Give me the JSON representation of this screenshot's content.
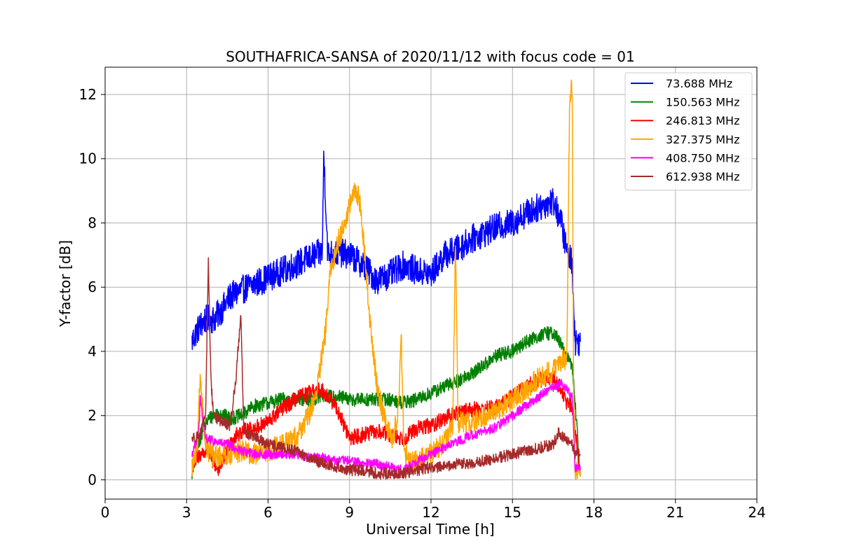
{
  "chart_data": {
    "type": "line",
    "title": "SOUTHAFRICA-SANSA of 2020/11/12 with focus code = 01",
    "xlabel": "Universal Time [h]",
    "ylabel": "Y-factor [dB]",
    "xlim": [
      0,
      24
    ],
    "ylim": [
      -0.6,
      12.85
    ],
    "xticks": [
      0,
      3,
      6,
      9,
      12,
      15,
      18,
      21,
      24
    ],
    "yticks": [
      0,
      2,
      4,
      6,
      8,
      10,
      12
    ],
    "grid": true,
    "legend_position": "top-right",
    "series": [
      {
        "name": " 73.688 MHz",
        "color": "#0000ff",
        "x": [
          3.2,
          3.35,
          3.5,
          3.7,
          4.0,
          4.3,
          4.6,
          5.0,
          5.5,
          6.0,
          6.5,
          7.0,
          7.5,
          8.0,
          8.05,
          8.2,
          8.5,
          9.0,
          9.5,
          10.0,
          10.5,
          11.0,
          11.5,
          12.0,
          12.5,
          13.0,
          13.5,
          14.0,
          14.5,
          15.0,
          15.5,
          16.0,
          16.5,
          16.8,
          17.0,
          17.2,
          17.3,
          17.5
        ],
        "values": [
          4.3,
          4.6,
          4.8,
          5.0,
          5.0,
          5.3,
          5.7,
          5.9,
          6.1,
          6.3,
          6.5,
          6.7,
          6.9,
          7.1,
          10.2,
          7.0,
          7.1,
          7.0,
          6.7,
          6.2,
          6.4,
          6.7,
          6.5,
          6.4,
          7.0,
          7.2,
          7.5,
          7.7,
          7.9,
          8.0,
          8.3,
          8.5,
          8.7,
          8.0,
          7.1,
          6.8,
          4.3,
          4.3
        ]
      },
      {
        "name": "150.563 MHz",
        "color": "#008000",
        "x": [
          3.2,
          3.5,
          3.8,
          4.2,
          4.6,
          5.0,
          5.5,
          6.0,
          6.5,
          7.0,
          7.5,
          8.0,
          8.5,
          9.0,
          9.5,
          10.0,
          10.5,
          11.0,
          11.5,
          12.0,
          12.5,
          13.0,
          13.5,
          14.0,
          14.5,
          15.0,
          15.5,
          16.0,
          16.5,
          16.8,
          17.0,
          17.2,
          17.5
        ],
        "values": [
          0.2,
          1.3,
          1.9,
          2.1,
          1.9,
          2.0,
          2.3,
          2.4,
          2.5,
          2.5,
          2.5,
          2.6,
          2.6,
          2.5,
          2.5,
          2.5,
          2.5,
          2.4,
          2.5,
          2.7,
          2.9,
          3.1,
          3.3,
          3.6,
          3.9,
          4.0,
          4.3,
          4.5,
          4.6,
          4.2,
          3.8,
          3.6,
          0.1
        ]
      },
      {
        "name": "246.813 MHz",
        "color": "#ff0000",
        "x": [
          3.2,
          3.5,
          3.8,
          4.0,
          4.2,
          4.6,
          5.0,
          5.5,
          6.0,
          6.5,
          7.0,
          7.5,
          8.0,
          8.5,
          9.0,
          9.5,
          10.0,
          10.5,
          11.0,
          11.5,
          12.0,
          12.5,
          13.0,
          13.5,
          14.0,
          14.5,
          15.0,
          15.5,
          16.0,
          16.5,
          16.8,
          17.0,
          17.2,
          17.5
        ],
        "values": [
          0.4,
          0.8,
          0.9,
          0.5,
          0.3,
          1.2,
          1.5,
          1.6,
          1.8,
          2.2,
          2.5,
          2.7,
          2.8,
          2.3,
          1.3,
          1.4,
          1.5,
          1.4,
          1.3,
          1.6,
          1.7,
          1.9,
          2.1,
          2.2,
          2.2,
          2.3,
          2.6,
          2.9,
          3.1,
          3.2,
          2.8,
          2.4,
          2.3,
          0.2
        ]
      },
      {
        "name": "327.375 MHz",
        "color": "#ffa500",
        "x": [
          3.2,
          3.4,
          3.5,
          3.7,
          4.0,
          4.5,
          5.0,
          5.5,
          6.0,
          6.5,
          7.0,
          7.5,
          7.8,
          8.1,
          8.3,
          8.6,
          8.9,
          9.1,
          9.25,
          9.4,
          9.6,
          9.8,
          10.0,
          10.2,
          10.4,
          10.6,
          10.8,
          10.9,
          11.0,
          11.2,
          11.5,
          12.0,
          12.5,
          12.8,
          12.9,
          13.0,
          13.5,
          14.0,
          14.5,
          15.0,
          15.5,
          16.0,
          16.5,
          16.8,
          17.0,
          17.1,
          17.15,
          17.2,
          17.25,
          17.3,
          17.5
        ],
        "values": [
          0.4,
          0.9,
          3.3,
          1.0,
          0.7,
          0.8,
          0.9,
          0.8,
          0.9,
          1.1,
          1.3,
          2.0,
          2.8,
          4.5,
          6.5,
          7.5,
          8.2,
          8.8,
          9.0,
          8.6,
          6.5,
          4.5,
          3.0,
          2.2,
          1.6,
          1.2,
          2.3,
          4.6,
          1.0,
          0.5,
          0.6,
          0.8,
          1.2,
          1.6,
          7.5,
          1.8,
          1.8,
          2.0,
          2.2,
          2.5,
          2.8,
          3.2,
          3.4,
          3.7,
          3.8,
          11.5,
          12.2,
          12.2,
          2.8,
          0.3,
          0.1
        ]
      },
      {
        "name": "408.750 MHz",
        "color": "#ff00ff",
        "x": [
          3.2,
          3.45,
          3.5,
          3.7,
          4.0,
          4.5,
          5.0,
          5.5,
          6.0,
          6.5,
          7.0,
          7.5,
          8.0,
          8.5,
          9.0,
          9.5,
          10.0,
          10.5,
          11.0,
          11.5,
          12.0,
          12.5,
          13.0,
          13.5,
          14.0,
          14.5,
          15.0,
          15.5,
          16.0,
          16.5,
          16.8,
          17.0,
          17.2,
          17.3,
          17.5
        ],
        "values": [
          0.8,
          1.5,
          2.5,
          1.3,
          1.2,
          1.1,
          0.9,
          0.8,
          0.8,
          0.8,
          0.8,
          0.7,
          0.7,
          0.6,
          0.6,
          0.5,
          0.5,
          0.4,
          0.3,
          0.6,
          0.8,
          1.0,
          1.2,
          1.4,
          1.5,
          1.7,
          2.0,
          2.3,
          2.6,
          2.9,
          3.0,
          2.8,
          2.6,
          0.4,
          0.4
        ]
      },
      {
        "name": "612.938 MHz",
        "color": "#a52a2a",
        "x": [
          3.2,
          3.5,
          3.7,
          3.8,
          3.9,
          4.0,
          4.3,
          4.6,
          4.8,
          5.0,
          5.1,
          5.3,
          5.6,
          6.0,
          6.5,
          7.0,
          7.5,
          8.0,
          8.5,
          9.0,
          9.5,
          10.0,
          10.5,
          11.0,
          11.5,
          12.0,
          12.5,
          13.0,
          13.5,
          14.0,
          14.5,
          15.0,
          15.5,
          16.0,
          16.5,
          16.7,
          17.0,
          17.2,
          17.3,
          17.5
        ],
        "values": [
          1.3,
          1.4,
          2.0,
          6.8,
          3.0,
          2.0,
          1.8,
          1.7,
          3.0,
          5.2,
          1.6,
          1.4,
          1.3,
          1.1,
          1.0,
          0.9,
          0.7,
          0.5,
          0.4,
          0.3,
          0.3,
          0.2,
          0.2,
          0.2,
          0.3,
          0.4,
          0.4,
          0.5,
          0.5,
          0.6,
          0.7,
          0.8,
          0.9,
          1.0,
          1.1,
          1.5,
          1.2,
          1.1,
          0.8,
          0.8
        ]
      }
    ]
  }
}
